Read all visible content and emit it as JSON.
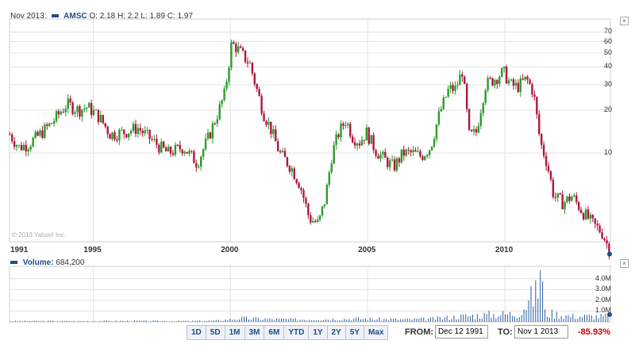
{
  "header": {
    "period": "Nov 2013:",
    "symbol": "AMSC",
    "ohlc": "O: 2.18 H: 2.2 L: 1.89 C: 1.97"
  },
  "volume_header": {
    "label": "Volume:",
    "value": "684,200"
  },
  "copyright": "© 2013 Yahoo! Inc.",
  "controls": {
    "ranges": [
      "1D",
      "5D",
      "1M",
      "3M",
      "6M",
      "YTD",
      "1Y",
      "2Y",
      "5Y",
      "Max"
    ],
    "from_label": "FROM:",
    "from_value": "Dec 12 1991",
    "to_label": "TO:",
    "to_value": "Nov 1 2013",
    "change": "-85.93%",
    "close_icon": "close-icon"
  },
  "colors": {
    "up": "#2a9c2a",
    "down": "#b0163c",
    "volume": "#2b5fa5",
    "grid": "#e3e3e3",
    "accent": "#1f4b87"
  },
  "chart_data": [
    {
      "type": "line",
      "title": "AMSC",
      "y_scale": "log",
      "ylim": [
        2.4,
        80
      ],
      "y_ticks": [
        10,
        20,
        30,
        40,
        50,
        60,
        70
      ],
      "x_ticks": [
        "1991",
        "1995",
        "2000",
        "2005",
        "2010"
      ],
      "xlim": [
        "1991-12",
        "2013-11"
      ],
      "grid": true,
      "candle_series": {
        "x": [
          "1991-12",
          "1992-04",
          "1992-08",
          "1992-12",
          "1993-06",
          "1994-01",
          "1994-06",
          "1994-10",
          "1995-03",
          "1995-08",
          "1996-02",
          "1996-08",
          "1997-03",
          "1997-09",
          "1998-04",
          "1998-10",
          "1999-03",
          "1999-07",
          "1999-10",
          "2000-01",
          "2000-03",
          "2000-06",
          "2000-09",
          "2000-12",
          "2001-03",
          "2001-06",
          "2001-10",
          "2002-03",
          "2002-07",
          "2002-11",
          "2003-03",
          "2003-06",
          "2003-09",
          "2003-12",
          "2004-03",
          "2004-06",
          "2004-09",
          "2004-12",
          "2005-04",
          "2005-08",
          "2005-12",
          "2006-04",
          "2006-08",
          "2006-12",
          "2007-04",
          "2007-08",
          "2007-12",
          "2008-03",
          "2008-06",
          "2008-09",
          "2008-12",
          "2009-04",
          "2009-08",
          "2009-12",
          "2010-03",
          "2010-06",
          "2010-10",
          "2011-01",
          "2011-04",
          "2011-07",
          "2011-10",
          "2012-02",
          "2012-06",
          "2012-10",
          "2013-03",
          "2013-07",
          "2013-11"
        ],
        "close": [
          13.5,
          11.0,
          11.5,
          13.0,
          16.0,
          22.0,
          20.0,
          21.0,
          18.0,
          13.5,
          14.0,
          15.0,
          12.0,
          10.0,
          11.0,
          8.5,
          13.0,
          19.0,
          26.0,
          58.0,
          55.0,
          48.0,
          42.0,
          28.0,
          19.0,
          15.0,
          10.0,
          8.0,
          6.0,
          3.5,
          3.2,
          4.8,
          10.0,
          14.0,
          17.0,
          13.0,
          12.0,
          14.0,
          10.5,
          9.0,
          8.0,
          10.0,
          10.0,
          9.5,
          11.0,
          19.0,
          28.0,
          28.0,
          38.0,
          13.0,
          14.0,
          30.0,
          33.0,
          37.0,
          30.0,
          29.0,
          33.0,
          27.0,
          12.0,
          8.5,
          5.0,
          4.5,
          5.0,
          4.0,
          3.2,
          2.8,
          1.97
        ]
      },
      "last_close": 1.97
    },
    {
      "type": "bar",
      "title": "Volume",
      "ylim": [
        0,
        5000000
      ],
      "y_ticks": [
        "1.0M",
        "2.0M",
        "3.0M",
        "4.0M"
      ],
      "x": [
        "1992",
        "1994",
        "1996",
        "1998",
        "1999",
        "2000",
        "2001",
        "2002",
        "2003",
        "2004",
        "2005",
        "2006",
        "2007",
        "2008",
        "2009",
        "2010",
        "2011",
        "2011-04",
        "2012",
        "2013"
      ],
      "values": [
        100000,
        100000,
        120000,
        100000,
        150000,
        450000,
        350000,
        300000,
        350000,
        400000,
        350000,
        300000,
        400000,
        700000,
        900000,
        1000000,
        4800000,
        1200000,
        700000,
        684200
      ]
    }
  ]
}
